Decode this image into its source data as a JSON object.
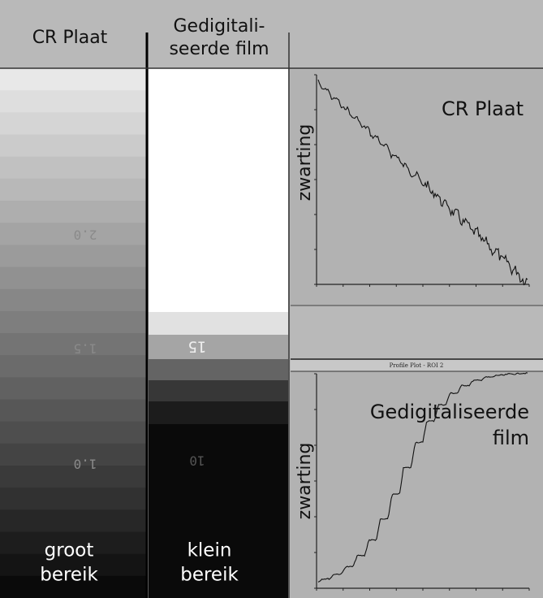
{
  "header": {
    "col1": "CR Plaat",
    "col2_line1": "Gedigitali-",
    "col2_line2": "seerde film"
  },
  "strips": {
    "cr": {
      "marks": [
        "2.0",
        "1.5",
        "1.0"
      ],
      "caption_line1": "groot",
      "caption_line2": "bereik"
    },
    "film": {
      "marks": [
        "15",
        "10"
      ],
      "caption_line1": "klein",
      "caption_line2": "bereik"
    }
  },
  "plots": {
    "top": {
      "title": "CR Plaat",
      "ylabel": "zwarting"
    },
    "bottom": {
      "window_title": "Profile Plot - ROI 2",
      "title_line1": "Gedigitaliseerde",
      "title_line2": "film",
      "ylabel": "zwarting"
    }
  }
}
